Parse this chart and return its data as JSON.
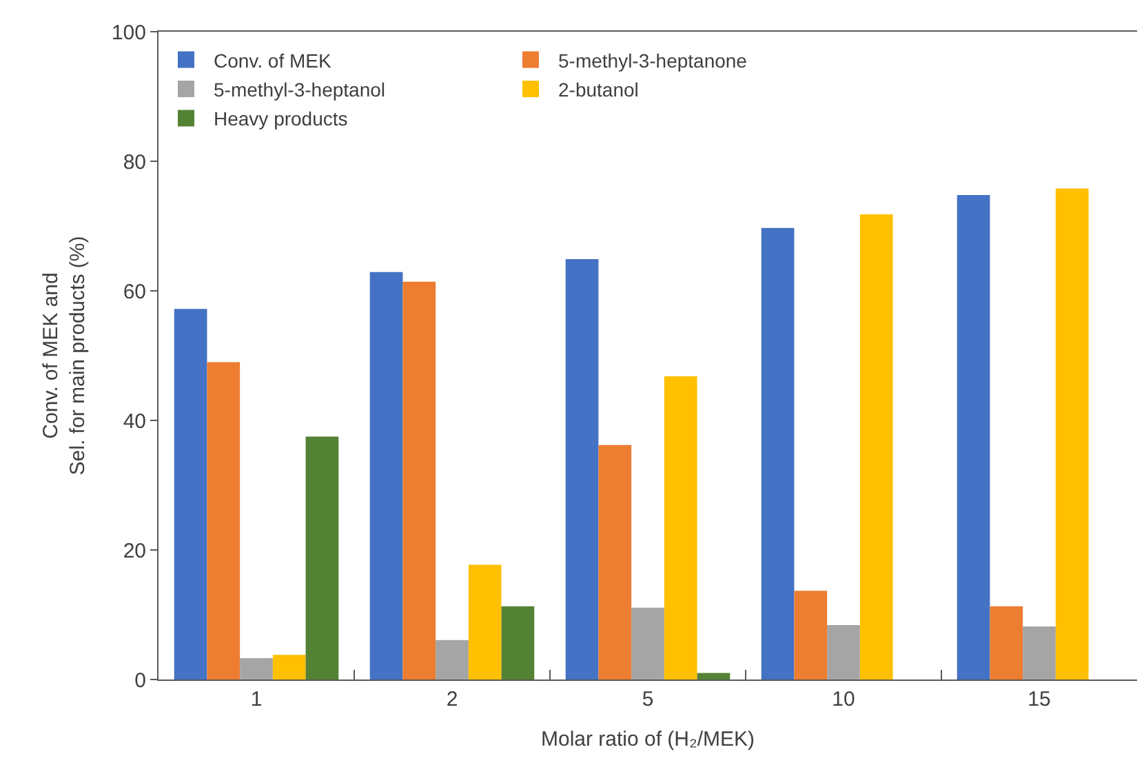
{
  "chart_data": {
    "type": "bar",
    "xlabel": "Molar ratio of (H₂/MEK)",
    "ylabel": "Conv. of MEK and\nSel. for main products (%)",
    "categories": [
      "1",
      "2",
      "5",
      "10",
      "15"
    ],
    "series": [
      {
        "name": "Conv. of MEK",
        "color": "#4472c4",
        "values": [
          57.2,
          62.9,
          64.9,
          69.7,
          74.8
        ]
      },
      {
        "name": "5-methyl-3-heptanone",
        "color": "#ed7d31",
        "values": [
          49.0,
          61.4,
          36.2,
          13.7,
          11.3
        ]
      },
      {
        "name": "5-methyl-3-heptanol",
        "color": "#a5a5a5",
        "values": [
          3.3,
          6.1,
          11.1,
          8.4,
          8.2
        ]
      },
      {
        "name": "2-butanol",
        "color": "#ffc000",
        "values": [
          3.8,
          17.7,
          46.8,
          71.8,
          75.8
        ]
      },
      {
        "name": "Heavy products",
        "color": "#548235",
        "values": [
          37.5,
          11.3,
          1.0,
          null,
          null
        ]
      }
    ],
    "ylim": [
      0,
      100
    ],
    "yticks": [
      0,
      20,
      40,
      60,
      80,
      100
    ],
    "legend": "top"
  }
}
